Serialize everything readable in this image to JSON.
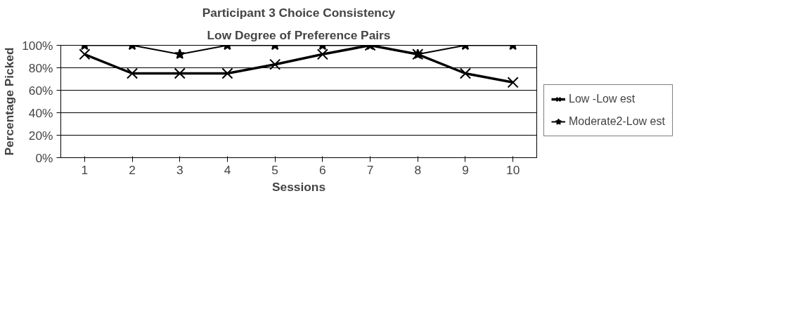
{
  "chart_data": {
    "type": "line",
    "title": "Participant 3 Choice Consistency",
    "subtitle": "Low Degree of Preference Pairs",
    "xlabel": "Sessions",
    "ylabel": "Percentage Picked",
    "categories": [
      "1",
      "2",
      "3",
      "4",
      "5",
      "6",
      "7",
      "8",
      "9",
      "10"
    ],
    "series": [
      {
        "name": "Low -Low est",
        "color": "#000000",
        "marker": "cross",
        "values": [
          92,
          75,
          75,
          75,
          83,
          92,
          100,
          92,
          75,
          67
        ]
      },
      {
        "name": "Moderate2-Low est",
        "color": "#000000",
        "marker": "star",
        "values": [
          100,
          100,
          92,
          100,
          100,
          100,
          100,
          92,
          100,
          100
        ]
      }
    ],
    "ylim": [
      0,
      100
    ],
    "yticks": [
      {
        "value": 0,
        "label": "0%"
      },
      {
        "value": 20,
        "label": "20%"
      },
      {
        "value": 40,
        "label": "40%"
      },
      {
        "value": 60,
        "label": "60%"
      },
      {
        "value": 80,
        "label": "80%"
      },
      {
        "value": 100,
        "label": "100%"
      }
    ],
    "grid": "y",
    "legend": "right",
    "line_style": "solid"
  }
}
